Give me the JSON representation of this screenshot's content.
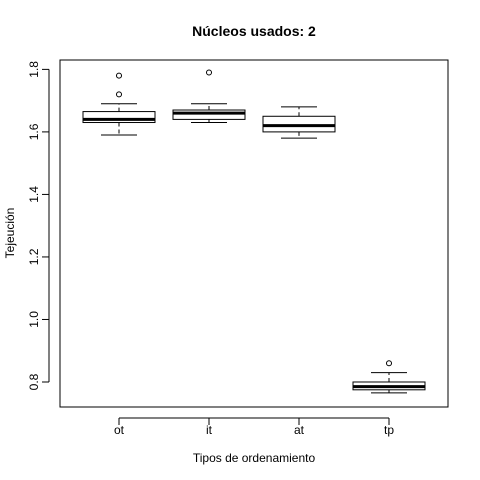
{
  "chart_data": {
    "type": "boxplot",
    "title": "Núcleos usados: 2",
    "xlabel": "Tipos de ordenamiento",
    "ylabel": "Tejeución",
    "ylim": [
      0.72,
      1.83
    ],
    "yticks": [
      0.8,
      1.0,
      1.2,
      1.4,
      1.6,
      1.8
    ],
    "ytick_labels": [
      "0.8",
      "1.0",
      "1.2",
      "1.4",
      "1.6",
      "1.8"
    ],
    "grid": false,
    "categories": [
      "ot",
      "it",
      "at",
      "tp"
    ],
    "boxes": [
      {
        "category": "ot",
        "whisker_low": 1.59,
        "q1": 1.63,
        "median": 1.64,
        "q3": 1.665,
        "whisker_high": 1.69,
        "outliers": [
          1.72,
          1.78
        ]
      },
      {
        "category": "it",
        "whisker_low": 1.63,
        "q1": 1.64,
        "median": 1.66,
        "q3": 1.67,
        "whisker_high": 1.69,
        "outliers": [
          1.79
        ]
      },
      {
        "category": "at",
        "whisker_low": 1.58,
        "q1": 1.6,
        "median": 1.62,
        "q3": 1.65,
        "whisker_high": 1.68,
        "outliers": []
      },
      {
        "category": "tp",
        "whisker_low": 0.765,
        "q1": 0.775,
        "median": 0.785,
        "q3": 0.8,
        "whisker_high": 0.83,
        "outliers": [
          0.86
        ]
      }
    ]
  }
}
